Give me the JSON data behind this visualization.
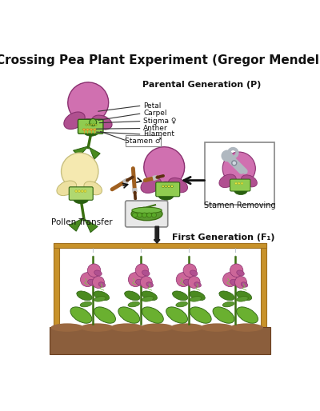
{
  "title": "Crossing Pea Plant Experiment (Gregor Mendel)",
  "title_fontsize": 11,
  "title_fontweight": "bold",
  "bg_color": "#ffffff",
  "labels": {
    "petal": "Petal",
    "carpel": "Carpel",
    "stigma": "Stigma ♀",
    "anther": "Anther",
    "filament": "Filament",
    "stamen": "Stamen ♂",
    "parental": "Parental Generation (P)",
    "pollen": "Pollen Transfer",
    "stamen_removing": "Stamen Removing",
    "first_gen": "First Generation (F₁)"
  },
  "colors": {
    "purple_flower": "#b05090",
    "purple_dark": "#8a3070",
    "purple_light": "#d070b0",
    "cream_flower": "#f0e8b0",
    "cream_dark": "#d0c890",
    "green_leaf": "#4a8a20",
    "green_dark": "#2a6010",
    "green_light": "#70aa40",
    "green_stem": "#3a7010",
    "brown_brush": "#a06020",
    "brown_soil": "#8B5E3C",
    "brown_dark_soil": "#6B3E1C",
    "brown_wood": "#c8922a",
    "silver_scissors": "#b0b8c0",
    "dark_line": "#222222",
    "box_border": "#555555",
    "arrow_color": "#111111",
    "label_color": "#222222",
    "parental_color": "#111111",
    "pea_green": "#5a9a30",
    "pea_dark": "#3a7010",
    "pink_flower": "#cc6699"
  },
  "figsize": [
    4.0,
    5.14
  ],
  "dpi": 100
}
